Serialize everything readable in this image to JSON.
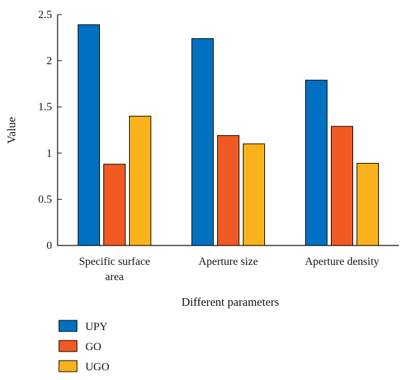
{
  "chart_data": {
    "type": "bar",
    "categories": [
      [
        "Specific surface",
        "area"
      ],
      [
        "Aperture size"
      ],
      [
        "Aperture density"
      ]
    ],
    "series": [
      {
        "name": "UPY",
        "color": "#0070c0",
        "values": [
          2.39,
          2.24,
          1.79
        ]
      },
      {
        "name": "GO",
        "color": "#f05a22",
        "values": [
          0.88,
          1.19,
          1.29
        ]
      },
      {
        "name": "UGO",
        "color": "#f9b21b",
        "values": [
          1.4,
          1.1,
          0.89
        ]
      }
    ],
    "xlabel": "Different parameters",
    "ylabel": "Value",
    "ylim": [
      0,
      2.5
    ],
    "yticks": [
      "0",
      "0.5",
      "1",
      "1.5",
      "2",
      "2.5"
    ],
    "ytick_values": [
      0,
      0.5,
      1,
      1.5,
      2,
      2.5
    ],
    "legend_position": "bottom-left",
    "grid": false
  }
}
